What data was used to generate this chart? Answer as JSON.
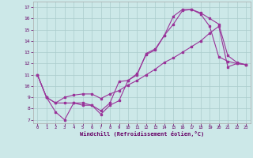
{
  "xlabel": "Windchill (Refroidissement éolien,°C)",
  "background_color": "#cce8e8",
  "grid_color": "#aacccc",
  "line_color": "#993399",
  "xlim": [
    -0.5,
    23.5
  ],
  "ylim": [
    6.7,
    17.5
  ],
  "xticks": [
    0,
    1,
    2,
    3,
    4,
    5,
    6,
    7,
    8,
    9,
    10,
    11,
    12,
    13,
    14,
    15,
    16,
    17,
    18,
    19,
    20,
    21,
    22,
    23
  ],
  "yticks": [
    7,
    8,
    9,
    10,
    11,
    12,
    13,
    14,
    15,
    16,
    17
  ],
  "line1_x": [
    0,
    1,
    2,
    3,
    4,
    5,
    6,
    7,
    8,
    9,
    10,
    11,
    12,
    13,
    14,
    15,
    16,
    17,
    18,
    19,
    20,
    21,
    22,
    23
  ],
  "line1_y": [
    11.0,
    9.0,
    7.7,
    7.0,
    8.5,
    8.3,
    8.3,
    7.5,
    8.3,
    8.7,
    10.5,
    11.0,
    12.9,
    13.3,
    14.5,
    16.2,
    16.8,
    16.8,
    16.4,
    15.3,
    12.6,
    12.2,
    12.0,
    11.9
  ],
  "line2_x": [
    0,
    1,
    2,
    3,
    4,
    5,
    6,
    7,
    8,
    9,
    10,
    11,
    12,
    13,
    14,
    15,
    16,
    17,
    18,
    19,
    20,
    21,
    22,
    23
  ],
  "line2_y": [
    11.0,
    9.0,
    8.5,
    8.5,
    8.5,
    8.5,
    8.3,
    7.8,
    8.5,
    10.4,
    10.5,
    11.1,
    12.8,
    13.2,
    14.5,
    15.5,
    16.7,
    16.8,
    16.5,
    16.0,
    15.5,
    12.7,
    12.1,
    11.9
  ],
  "line3_x": [
    0,
    1,
    2,
    3,
    4,
    5,
    6,
    7,
    8,
    9,
    10,
    11,
    12,
    13,
    14,
    15,
    16,
    17,
    18,
    19,
    20,
    21,
    22,
    23
  ],
  "line3_y": [
    11.0,
    9.0,
    8.5,
    9.0,
    9.2,
    9.3,
    9.3,
    8.9,
    9.3,
    9.6,
    10.1,
    10.5,
    11.0,
    11.5,
    12.1,
    12.5,
    13.0,
    13.5,
    14.0,
    14.7,
    15.3,
    11.7,
    12.0,
    11.9
  ]
}
